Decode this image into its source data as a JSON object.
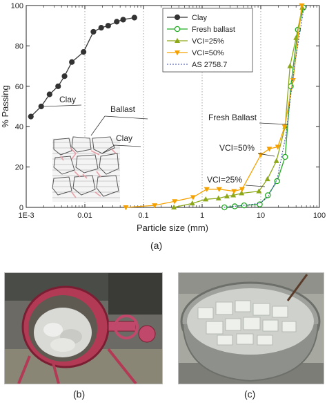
{
  "chart_data": {
    "type": "scatter",
    "xscale": "log",
    "xlim": [
      0.001,
      100
    ],
    "ylim": [
      0,
      100
    ],
    "xlabel": "Particle size (mm)",
    "ylabel": "% Passing",
    "xtick_labels": [
      "1E-3",
      "0.01",
      "0.1",
      "1",
      "10",
      "100"
    ],
    "xtick_values": [
      0.001,
      0.01,
      0.1,
      1,
      10,
      100
    ],
    "ytick_labels": [
      "0",
      "20",
      "40",
      "60",
      "80",
      "100"
    ],
    "ytick_values": [
      0,
      20,
      40,
      60,
      80,
      100
    ],
    "grid": "dotted vertical lines at each decade",
    "legend_position": "top-right",
    "series": [
      {
        "name": "Clay",
        "color": "#333333",
        "marker": "filled-circle",
        "line": "solid",
        "x": [
          0.0012,
          0.0018,
          0.0025,
          0.0035,
          0.0045,
          0.006,
          0.0095,
          0.014,
          0.019,
          0.025,
          0.035,
          0.045,
          0.07
        ],
        "y": [
          45,
          50,
          56,
          60,
          65,
          72,
          77,
          87,
          89,
          90,
          92,
          93,
          94
        ]
      },
      {
        "name": "Fresh ballast",
        "color": "#22aa22",
        "marker": "open-circle",
        "line": "solid",
        "x": [
          2.4,
          3.6,
          5.2,
          9.6,
          13.2,
          19,
          26,
          32.5,
          43,
          53.5
        ],
        "y": [
          0,
          0.5,
          1,
          1.5,
          6,
          13,
          25,
          60,
          88,
          99
        ]
      },
      {
        "name": "VCI=25%",
        "color": "#8da818",
        "marker": "triangle-up",
        "line": "solid",
        "x": [
          0.33,
          0.68,
          1.15,
          1.9,
          2.65,
          3.4,
          4.7,
          9.3,
          13,
          18.5,
          26,
          31.5,
          40,
          51
        ],
        "y": [
          0,
          2,
          4,
          4.5,
          5.5,
          6,
          7,
          8,
          14,
          23,
          40,
          70,
          84,
          99
        ]
      },
      {
        "name": "VCI=50%",
        "color": "#f5a200",
        "marker": "triangle-down",
        "line": "solid",
        "x": [
          0.05,
          0.155,
          0.34,
          0.7,
          1.2,
          1.95,
          3.5,
          4.8,
          10,
          14,
          19.5,
          25.5,
          35.5,
          50
        ],
        "y": [
          0,
          1,
          3,
          5,
          9,
          9,
          8,
          9,
          26,
          29,
          30,
          40,
          63,
          100
        ]
      },
      {
        "name": "AS 2758.7",
        "color": "#3344aa",
        "marker": "none",
        "line": "dotted",
        "x": [
          2.36,
          5,
          9.5,
          13.2,
          19,
          26.5,
          37.5,
          53,
          63
        ],
        "y": [
          0,
          1,
          2,
          5,
          14,
          35,
          70,
          97,
          100
        ]
      }
    ],
    "annotations": [
      "Clay",
      "Ballast",
      "Clay",
      "Fresh Ballast",
      "VCI=50%",
      "VCI=25%"
    ]
  },
  "captions": {
    "a": "(a)",
    "b": "(b)",
    "c": "(c)"
  },
  "photos": {
    "b": {
      "subject": "concrete-mixer-photo"
    },
    "c": {
      "subject": "ballast-bucket-photo"
    }
  }
}
